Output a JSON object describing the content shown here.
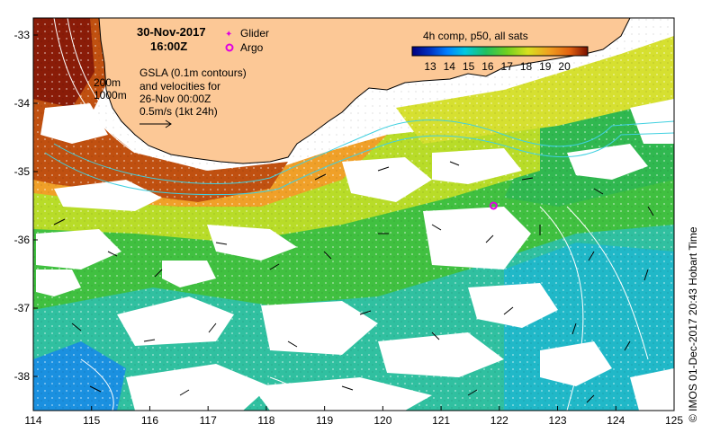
{
  "header": {
    "date": "30-Nov-2017",
    "time": "16:00Z"
  },
  "legend": {
    "glider_label": "Glider",
    "argo_label": "Argo",
    "glider_color": "#e000e0",
    "argo_color": "#e000e0"
  },
  "gsla_note": {
    "line1": "GSLA (0.1m contours)",
    "line2": "and velocities for",
    "line3": "26-Nov 00:00Z",
    "line4": "0.5m/s (1kt 24h)"
  },
  "isobaths": {
    "label_200": "200m",
    "label_1000": "1000m"
  },
  "colorbar": {
    "title": "4h comp, p50, all sats",
    "ticks": [
      "13",
      "14",
      "15",
      "16",
      "17",
      "18",
      "19",
      "20"
    ],
    "colors": [
      "#00007f",
      "#0030c0",
      "#0080ff",
      "#00c8e0",
      "#20c060",
      "#70d020",
      "#d8e020",
      "#f0a020",
      "#e06010",
      "#b02000",
      "#7a1000"
    ]
  },
  "axes": {
    "x_ticks": [
      "114",
      "115",
      "116",
      "117",
      "118",
      "119",
      "120",
      "121",
      "122",
      "123",
      "124",
      "125"
    ],
    "y_ticks": [
      "-33",
      "-34",
      "-35",
      "-36",
      "-37",
      "-38"
    ]
  },
  "credit": "© IMOS 01-Dec-2017 20:43 Hobart Time",
  "argo_float": {
    "lon": 121.9,
    "lat": -35.5
  },
  "colors": {
    "land": "#fcc896",
    "ocean_gap": "#ffffff",
    "isobath": "#40d0e0",
    "gsla_contour": "#ffffff"
  }
}
